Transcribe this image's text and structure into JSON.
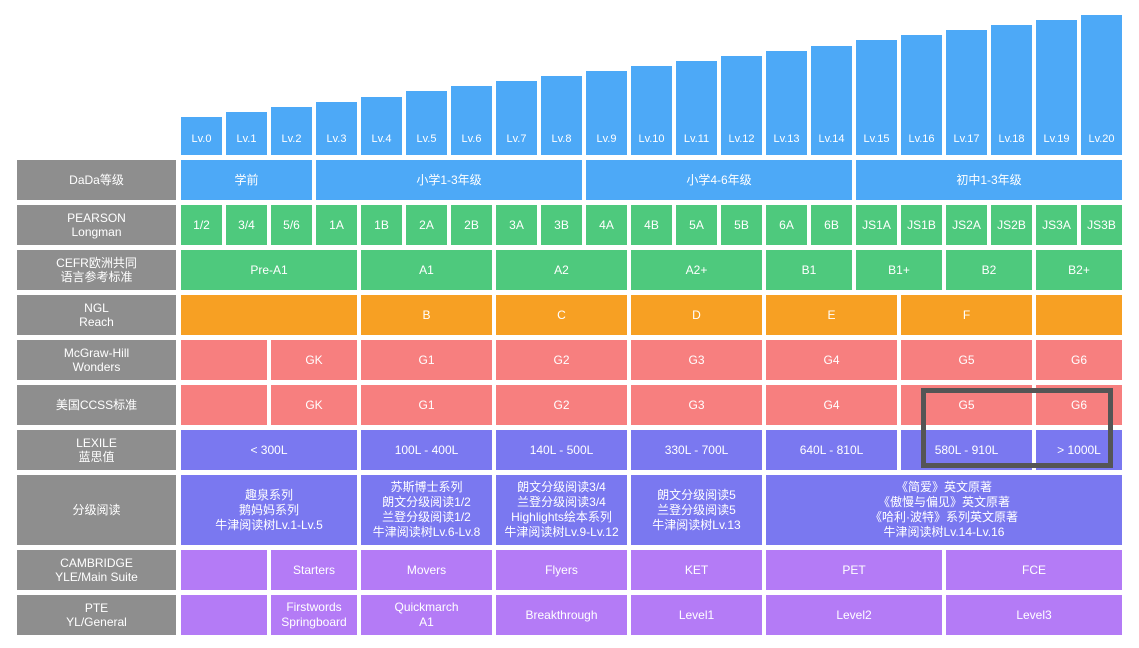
{
  "colors": {
    "header": "#8e8e8e",
    "dada": "#4da9f7",
    "green": "#4ec97d",
    "orange": "#f7a023",
    "red": "#f77f7f",
    "blue_violet": "#7a78f0",
    "violet": "#b47bf6",
    "highlight": "#555555"
  },
  "chart_data": {
    "type": "table",
    "levels": [
      "Lv.0",
      "Lv.1",
      "Lv.2",
      "Lv.3",
      "Lv.4",
      "Lv.5",
      "Lv.6",
      "Lv.7",
      "Lv.8",
      "Lv.9",
      "Lv.10",
      "Lv.11",
      "Lv.12",
      "Lv.13",
      "Lv.14",
      "Lv.15",
      "Lv.16",
      "Lv.17",
      "Lv.18",
      "Lv.19",
      "Lv.20"
    ],
    "rows": [
      {
        "key": "dada",
        "header": "DaDa等级",
        "color": "#4da9f7",
        "cells": [
          {
            "label": "学前",
            "span": [
              0,
              2
            ]
          },
          {
            "label": "小学1-3年级",
            "span": [
              3,
              8
            ]
          },
          {
            "label": "小学4-6年级",
            "span": [
              9,
              14
            ]
          },
          {
            "label": "初中1-3年级",
            "span": [
              15,
              20
            ]
          }
        ]
      },
      {
        "key": "pearson",
        "header": "PEARSON\nLongman",
        "color": "#4ec97d",
        "cells": [
          {
            "label": "1/2",
            "span": [
              0,
              0
            ]
          },
          {
            "label": "3/4",
            "span": [
              1,
              1
            ]
          },
          {
            "label": "5/6",
            "span": [
              2,
              2
            ]
          },
          {
            "label": "1A",
            "span": [
              3,
              3
            ]
          },
          {
            "label": "1B",
            "span": [
              4,
              4
            ]
          },
          {
            "label": "2A",
            "span": [
              5,
              5
            ]
          },
          {
            "label": "2B",
            "span": [
              6,
              6
            ]
          },
          {
            "label": "3A",
            "span": [
              7,
              7
            ]
          },
          {
            "label": "3B",
            "span": [
              8,
              8
            ]
          },
          {
            "label": "4A",
            "span": [
              9,
              9
            ]
          },
          {
            "label": "4B",
            "span": [
              10,
              10
            ]
          },
          {
            "label": "5A",
            "span": [
              11,
              11
            ]
          },
          {
            "label": "5B",
            "span": [
              12,
              12
            ]
          },
          {
            "label": "6A",
            "span": [
              13,
              13
            ]
          },
          {
            "label": "6B",
            "span": [
              14,
              14
            ]
          },
          {
            "label": "JS1A",
            "span": [
              15,
              15
            ]
          },
          {
            "label": "JS1B",
            "span": [
              16,
              16
            ]
          },
          {
            "label": "JS2A",
            "span": [
              17,
              17
            ]
          },
          {
            "label": "JS2B",
            "span": [
              18,
              18
            ]
          },
          {
            "label": "JS3A",
            "span": [
              19,
              19
            ]
          },
          {
            "label": "JS3B",
            "span": [
              20,
              20
            ]
          }
        ]
      },
      {
        "key": "cefr",
        "header": "CEFR欧洲共同\n语言参考标准",
        "color": "#4ec97d",
        "cells": [
          {
            "label": "Pre-A1",
            "span": [
              0,
              3
            ]
          },
          {
            "label": "A1",
            "span": [
              4,
              6
            ]
          },
          {
            "label": "A2",
            "span": [
              7,
              9
            ]
          },
          {
            "label": "A2+",
            "span": [
              10,
              12
            ]
          },
          {
            "label": "B1",
            "span": [
              13,
              14
            ]
          },
          {
            "label": "B1+",
            "span": [
              15,
              16
            ]
          },
          {
            "label": "B2",
            "span": [
              17,
              18
            ]
          },
          {
            "label": "B2+",
            "span": [
              19,
              20
            ]
          }
        ]
      },
      {
        "key": "ngl",
        "header": "NGL\nReach",
        "color": "#f7a023",
        "cells": [
          {
            "label": "",
            "span": [
              0,
              3
            ]
          },
          {
            "label": "B",
            "span": [
              4,
              6
            ]
          },
          {
            "label": "C",
            "span": [
              7,
              9
            ]
          },
          {
            "label": "D",
            "span": [
              10,
              12
            ]
          },
          {
            "label": "E",
            "span": [
              13,
              15
            ]
          },
          {
            "label": "F",
            "span": [
              16,
              18
            ]
          },
          {
            "label": "",
            "span": [
              19,
              20
            ]
          }
        ]
      },
      {
        "key": "mcgraw",
        "header": "McGraw-Hill\nWonders",
        "color": "#f77f7f",
        "cells": [
          {
            "label": "",
            "span": [
              0,
              1
            ]
          },
          {
            "label": "GK",
            "span": [
              2,
              3
            ]
          },
          {
            "label": "G1",
            "span": [
              4,
              6
            ]
          },
          {
            "label": "G2",
            "span": [
              7,
              9
            ]
          },
          {
            "label": "G3",
            "span": [
              10,
              12
            ]
          },
          {
            "label": "G4",
            "span": [
              13,
              15
            ]
          },
          {
            "label": "G5",
            "span": [
              16,
              18
            ]
          },
          {
            "label": "G6",
            "span": [
              19,
              20
            ]
          }
        ]
      },
      {
        "key": "ccss",
        "header": "美国CCSS标准",
        "color": "#f77f7f",
        "cells": [
          {
            "label": "",
            "span": [
              0,
              1
            ]
          },
          {
            "label": "GK",
            "span": [
              2,
              3
            ]
          },
          {
            "label": "G1",
            "span": [
              4,
              6
            ]
          },
          {
            "label": "G2",
            "span": [
              7,
              9
            ]
          },
          {
            "label": "G3",
            "span": [
              10,
              12
            ]
          },
          {
            "label": "G4",
            "span": [
              13,
              15
            ]
          },
          {
            "label": "G5",
            "span": [
              16,
              18
            ]
          },
          {
            "label": "G6",
            "span": [
              19,
              20
            ]
          }
        ]
      },
      {
        "key": "lexile",
        "header": "LEXILE\n蓝思值",
        "color": "#7a78f0",
        "cells": [
          {
            "label": "< 300L",
            "span": [
              0,
              3
            ]
          },
          {
            "label": "100L - 400L",
            "span": [
              4,
              6
            ]
          },
          {
            "label": "140L - 500L",
            "span": [
              7,
              9
            ]
          },
          {
            "label": "330L - 700L",
            "span": [
              10,
              12
            ]
          },
          {
            "label": "640L - 810L",
            "span": [
              13,
              15
            ]
          },
          {
            "label": "580L - 910L",
            "span": [
              16,
              18
            ]
          },
          {
            "label": "> 1000L",
            "span": [
              19,
              20
            ]
          }
        ]
      },
      {
        "key": "graded",
        "header": "分级阅读",
        "color": "#7a78f0",
        "cells": [
          {
            "label": "趣泉系列\n鹅妈妈系列\n牛津阅读树Lv.1-Lv.5",
            "span": [
              0,
              3
            ]
          },
          {
            "label": "苏斯博士系列\n朗文分级阅读1/2\n兰登分级阅读1/2\n牛津阅读树Lv.6-Lv.8",
            "span": [
              4,
              6
            ]
          },
          {
            "label": "朗文分级阅读3/4\n兰登分级阅读3/4\nHighlights绘本系列\n牛津阅读树Lv.9-Lv.12",
            "span": [
              7,
              9
            ]
          },
          {
            "label": "朗文分级阅读5\n兰登分级阅读5\n牛津阅读树Lv.13",
            "span": [
              10,
              12
            ]
          },
          {
            "label": "《简爱》英文原著\n《傲慢与偏见》英文原著\n《哈利·波特》系列英文原著\n牛津阅读树Lv.14-Lv.16",
            "span": [
              13,
              20
            ]
          }
        ]
      },
      {
        "key": "cambridge",
        "header": "CAMBRIDGE\nYLE/Main Suite",
        "color": "#b47bf6",
        "cells": [
          {
            "label": "",
            "span": [
              0,
              1
            ]
          },
          {
            "label": "Starters",
            "span": [
              2,
              3
            ]
          },
          {
            "label": "Movers",
            "span": [
              4,
              6
            ]
          },
          {
            "label": "Flyers",
            "span": [
              7,
              9
            ]
          },
          {
            "label": "KET",
            "span": [
              10,
              12
            ]
          },
          {
            "label": "PET",
            "span": [
              13,
              16
            ]
          },
          {
            "label": "FCE",
            "span": [
              17,
              20
            ]
          }
        ]
      },
      {
        "key": "pte",
        "header": "PTE\nYL/General",
        "color": "#b47bf6",
        "cells": [
          {
            "label": "",
            "span": [
              0,
              1
            ]
          },
          {
            "label": "Firstwords\nSpringboard",
            "span": [
              2,
              3
            ]
          },
          {
            "label": "Quickmarch\nA1",
            "span": [
              4,
              6
            ]
          },
          {
            "label": "Breakthrough",
            "span": [
              7,
              9
            ]
          },
          {
            "label": "Level1",
            "span": [
              10,
              12
            ]
          },
          {
            "label": "Level2",
            "span": [
              13,
              16
            ]
          },
          {
            "label": "Level3",
            "span": [
              17,
              20
            ]
          }
        ]
      }
    ]
  }
}
